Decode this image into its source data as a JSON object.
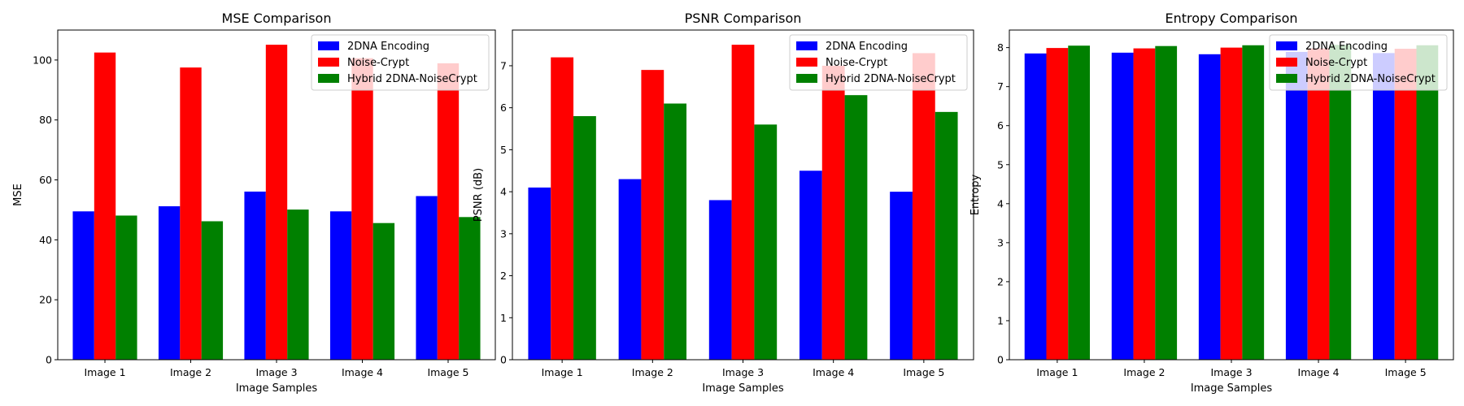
{
  "chart_data": [
    {
      "type": "bar",
      "title": "MSE Comparison",
      "xlabel": "Image Samples",
      "ylabel": "MSE",
      "categories": [
        "Image 1",
        "Image 2",
        "Image 3",
        "Image 4",
        "Image 5"
      ],
      "ylim": [
        0,
        110
      ],
      "yticks": [
        0,
        20,
        40,
        60,
        80,
        100
      ],
      "grid": false,
      "legend_position": "top-right",
      "series": [
        {
          "name": "2DNA Encoding",
          "color": "#0000ff",
          "values": [
            49.5,
            51.2,
            56.1,
            49.5,
            54.6
          ]
        },
        {
          "name": "Noise-Crypt",
          "color": "#ff0000",
          "values": [
            102.5,
            97.5,
            105.1,
            100.6,
            98.9
          ]
        },
        {
          "name": "Hybrid 2DNA-NoiseCrypt",
          "color": "#008000",
          "values": [
            48.1,
            46.2,
            50.1,
            45.6,
            47.6
          ]
        }
      ]
    },
    {
      "type": "bar",
      "title": "PSNR Comparison",
      "xlabel": "Image Samples",
      "ylabel": "PSNR (dB)",
      "categories": [
        "Image 1",
        "Image 2",
        "Image 3",
        "Image 4",
        "Image 5"
      ],
      "ylim": [
        0,
        7.85
      ],
      "yticks": [
        0,
        1,
        2,
        3,
        4,
        5,
        6,
        7
      ],
      "grid": false,
      "legend_position": "top-right",
      "series": [
        {
          "name": "2DNA Encoding",
          "color": "#0000ff",
          "values": [
            4.1,
            4.3,
            3.8,
            4.5,
            4.0
          ]
        },
        {
          "name": "Noise-Crypt",
          "color": "#ff0000",
          "values": [
            7.2,
            6.9,
            7.5,
            7.0,
            7.3
          ]
        },
        {
          "name": "Hybrid 2DNA-NoiseCrypt",
          "color": "#008000",
          "values": [
            5.8,
            6.1,
            5.6,
            6.3,
            5.9
          ]
        }
      ]
    },
    {
      "type": "bar",
      "title": "Entropy Comparison",
      "xlabel": "Image Samples",
      "ylabel": "Entropy",
      "categories": [
        "Image 1",
        "Image 2",
        "Image 3",
        "Image 4",
        "Image 5"
      ],
      "ylim": [
        0,
        8.45
      ],
      "yticks": [
        0,
        1,
        2,
        3,
        4,
        5,
        6,
        7,
        8
      ],
      "grid": false,
      "legend_position": "top-right",
      "series": [
        {
          "name": "2DNA Encoding",
          "color": "#0000ff",
          "values": [
            7.85,
            7.87,
            7.83,
            7.89,
            7.86
          ]
        },
        {
          "name": "Noise-Crypt",
          "color": "#ff0000",
          "values": [
            7.99,
            7.98,
            8.0,
            7.98,
            7.97
          ]
        },
        {
          "name": "Hybrid 2DNA-NoiseCrypt",
          "color": "#008000",
          "values": [
            8.05,
            8.04,
            8.06,
            8.07,
            8.06
          ]
        }
      ]
    }
  ]
}
